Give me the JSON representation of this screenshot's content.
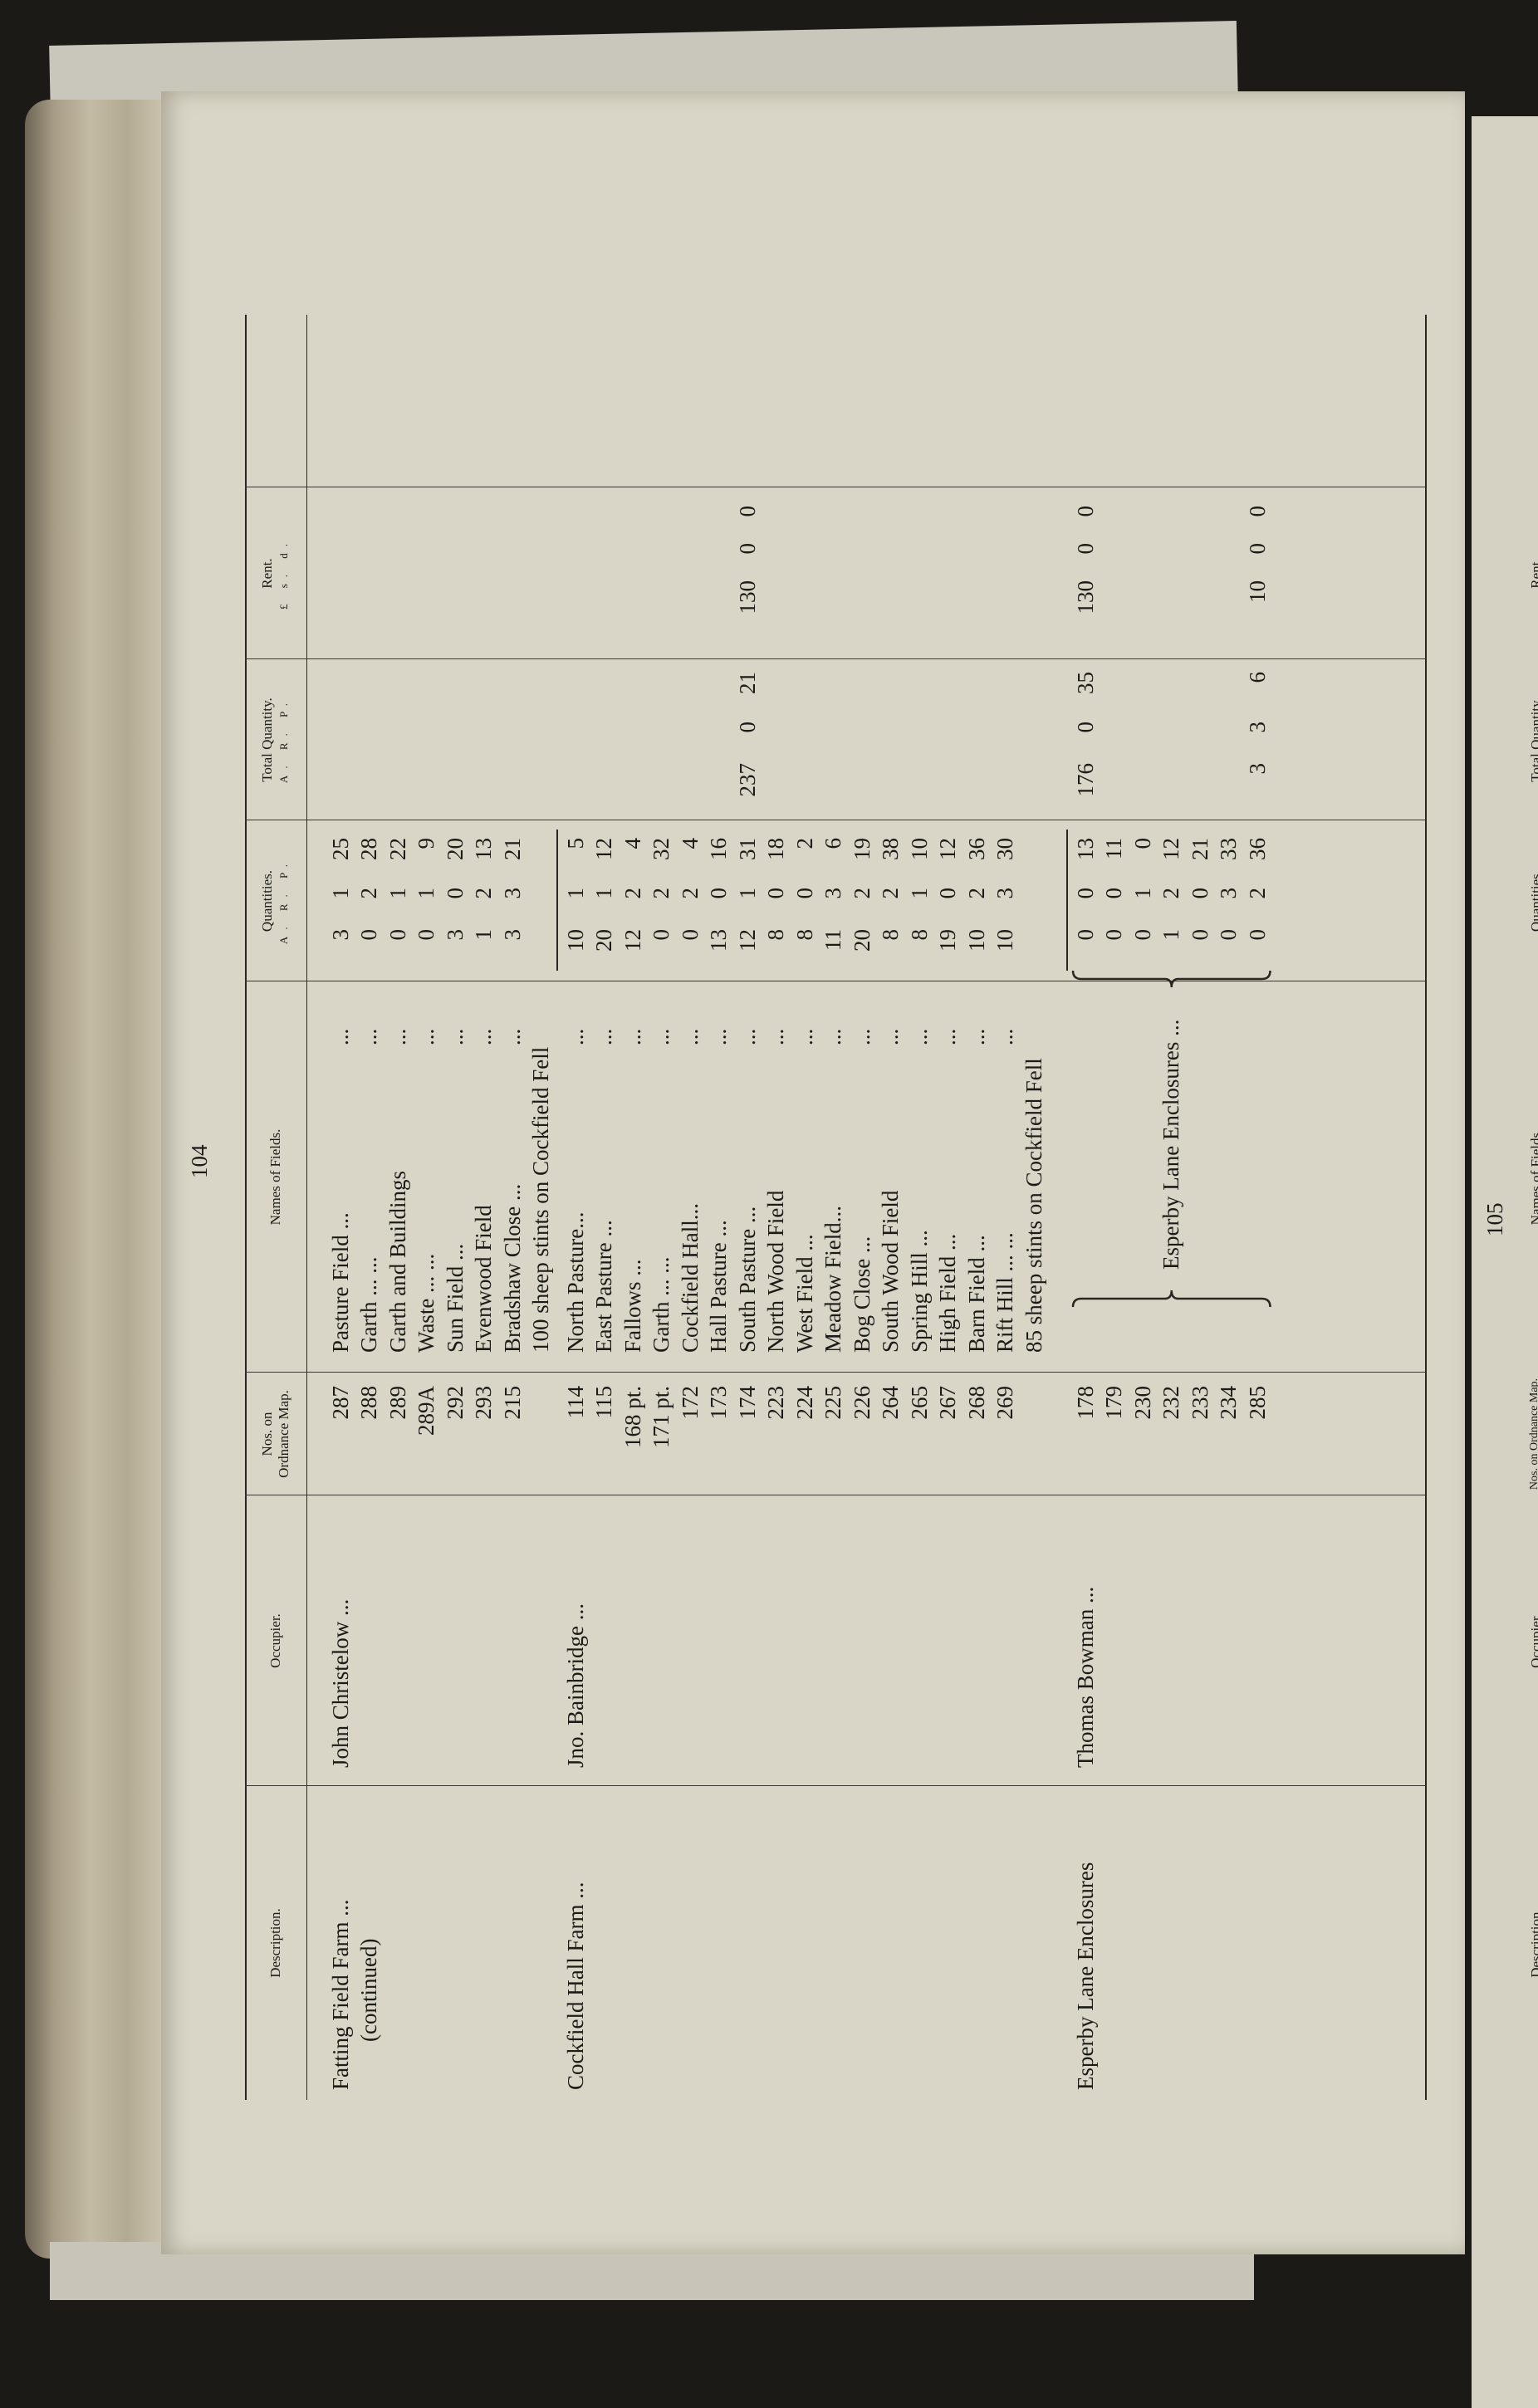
{
  "page": {
    "number": "104",
    "next_page_number": "105"
  },
  "headers": {
    "description": "Description.",
    "occupier": "Occupier.",
    "nos": "Nos. on",
    "nos_sub": "Ordnance Map.",
    "names": "Names of Fields.",
    "quantities": "Quantities.",
    "quantities_sub": "A. R. P.",
    "total": "Total Quantity.",
    "total_sub": "A. R. P.",
    "rent": "Rent.",
    "rent_sub": "£ s. d."
  },
  "next_page_headers": {
    "description": "Description.",
    "occupier": "Occupier.",
    "nos": "Nos. on Ordnance Map.",
    "names": "Names of Fields.",
    "quantities": "Quantities.",
    "total": "Total Quantity.",
    "rent": "Rent."
  },
  "leader": "...",
  "groups": [
    {
      "description": [
        "Fatting Field Farm ...",
        "(continued)"
      ],
      "occupier": "John Christelow ...",
      "rows": [
        {
          "no": "287",
          "name": "Pasture Field ...",
          "qty": [
            "3",
            "1",
            "25"
          ]
        },
        {
          "no": "288",
          "name": "Garth ... ...",
          "qty": [
            "0",
            "2",
            "28"
          ]
        },
        {
          "no": "289",
          "name": "Garth and Buildings",
          "qty": [
            "0",
            "1",
            "22"
          ]
        },
        {
          "no": "289A",
          "name": "Waste ... ...",
          "qty": [
            "0",
            "1",
            "9"
          ]
        },
        {
          "no": "292",
          "name": "Sun Field ...",
          "qty": [
            "3",
            "0",
            "20"
          ]
        },
        {
          "no": "293",
          "name": "Evenwood Field",
          "qty": [
            "1",
            "2",
            "13"
          ]
        },
        {
          "no": "215",
          "name": "Bradshaw Close ...",
          "qty": [
            "3",
            "3",
            "21"
          ]
        },
        {
          "no": "",
          "name": "100 sheep stints on Cockfield Fell",
          "qty": [
            "",
            "",
            ""
          ]
        }
      ]
    },
    {
      "description": [
        "Cockfield Hall Farm ..."
      ],
      "occupier": "Jno. Bainbridge ...",
      "rows": [
        {
          "no": "114",
          "name": "North Pasture...",
          "qty": [
            "10",
            "1",
            "5"
          ]
        },
        {
          "no": "115",
          "name": "East Pasture ...",
          "qty": [
            "20",
            "1",
            "12"
          ]
        },
        {
          "no": "168 pt.",
          "name": "Fallows ...",
          "qty": [
            "12",
            "2",
            "4"
          ]
        },
        {
          "no": "171 pt.",
          "name": "Garth ... ...",
          "qty": [
            "0",
            "2",
            "32"
          ]
        },
        {
          "no": "172",
          "name": "Cockfield Hall...",
          "qty": [
            "0",
            "2",
            "4"
          ]
        },
        {
          "no": "173",
          "name": "Hall Pasture ...",
          "qty": [
            "13",
            "0",
            "16"
          ]
        },
        {
          "no": "174",
          "name": "South Pasture ...",
          "qty": [
            "12",
            "1",
            "31"
          ],
          "total": [
            "237",
            "0",
            "21"
          ],
          "rent": [
            "130",
            "0",
            "0"
          ]
        },
        {
          "no": "223",
          "name": "North Wood Field",
          "qty": [
            "8",
            "0",
            "18"
          ]
        },
        {
          "no": "224",
          "name": "West Field ...",
          "qty": [
            "8",
            "0",
            "2"
          ]
        },
        {
          "no": "225",
          "name": "Meadow Field...",
          "qty": [
            "11",
            "3",
            "6"
          ]
        },
        {
          "no": "226",
          "name": "Bog Close ...",
          "qty": [
            "20",
            "2",
            "19"
          ]
        },
        {
          "no": "264",
          "name": "South Wood Field",
          "qty": [
            "8",
            "2",
            "38"
          ]
        },
        {
          "no": "265",
          "name": "Spring Hill ...",
          "qty": [
            "8",
            "1",
            "10"
          ]
        },
        {
          "no": "267",
          "name": "High Field ...",
          "qty": [
            "19",
            "0",
            "12"
          ]
        },
        {
          "no": "268",
          "name": "Barn Field ...",
          "qty": [
            "10",
            "2",
            "36"
          ]
        },
        {
          "no": "269",
          "name": "Rift Hill ... ...",
          "qty": [
            "10",
            "3",
            "30"
          ]
        },
        {
          "no": "",
          "name": "85 sheep stints on Cockfield Fell",
          "qty": [
            "",
            "",
            ""
          ]
        }
      ]
    },
    {
      "description": [
        "Esperby Lane Enclosures"
      ],
      "occupier": "Thomas Bowman ...",
      "fields_label": "Esperby Lane Enclosures ...",
      "rows": [
        {
          "no": "178",
          "name": "",
          "qty": [
            "0",
            "0",
            "13"
          ],
          "total": [
            "176",
            "0",
            "35"
          ],
          "rent": [
            "130",
            "0",
            "0"
          ]
        },
        {
          "no": "179",
          "name": "",
          "qty": [
            "0",
            "0",
            "11"
          ]
        },
        {
          "no": "230",
          "name": "",
          "qty": [
            "0",
            "1",
            "0"
          ]
        },
        {
          "no": "232",
          "name": "",
          "qty": [
            "1",
            "2",
            "12"
          ]
        },
        {
          "no": "233",
          "name": "",
          "qty": [
            "0",
            "0",
            "21"
          ]
        },
        {
          "no": "234",
          "name": "",
          "qty": [
            "0",
            "3",
            "33"
          ]
        },
        {
          "no": "285",
          "name": "",
          "qty": [
            "0",
            "2",
            "36"
          ],
          "total": [
            "3",
            "3",
            "6"
          ],
          "rent": [
            "10",
            "0",
            "0"
          ]
        }
      ]
    }
  ]
}
